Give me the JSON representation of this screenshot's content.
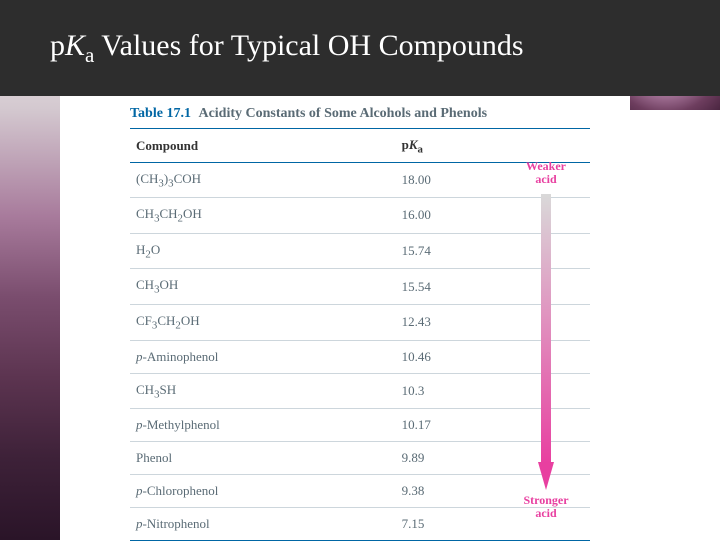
{
  "title": {
    "prefix": "p",
    "k": "K",
    "sub": "a",
    "rest": " Values for Typical OH Compounds"
  },
  "table": {
    "number": "Table 17.1",
    "caption": "Acidity Constants of Some Alcohols and Phenols",
    "headers": {
      "compound": "Compound",
      "pka": "pKa"
    },
    "rows": [
      {
        "compound_html": "(CH<sub>3</sub>)<sub>3</sub>COH",
        "pka": "18.00"
      },
      {
        "compound_html": "CH<sub>3</sub>CH<sub>2</sub>OH",
        "pka": "16.00"
      },
      {
        "compound_html": "H<sub>2</sub>O",
        "pka": "15.74"
      },
      {
        "compound_html": "CH<sub>3</sub>OH",
        "pka": "15.54"
      },
      {
        "compound_html": "CF<sub>3</sub>CH<sub>2</sub>OH",
        "pka": "12.43"
      },
      {
        "compound_html": "<i>p</i>-Aminophenol",
        "pka": "10.46"
      },
      {
        "compound_html": "CH<sub>3</sub>SH",
        "pka": "10.3"
      },
      {
        "compound_html": "<i>p</i>-Methylphenol",
        "pka": "10.17"
      },
      {
        "compound_html": "Phenol",
        "pka": "9.89"
      },
      {
        "compound_html": "<i>p</i>-Chlorophenol",
        "pka": "9.38"
      },
      {
        "compound_html": "<i>p</i>-Nitrophenol",
        "pka": "7.15"
      }
    ]
  },
  "arrow": {
    "top_label": "Weaker acid",
    "bottom_label": "Stronger acid",
    "gradient_top": "#d9d9d9",
    "gradient_bottom": "#e83fa0"
  },
  "colors": {
    "title_bg": "#2d2d2d",
    "title_fg": "#ffffff",
    "accent_blue": "#0066a4",
    "body_gray": "#5a6b75",
    "pink": "#e83fa0"
  }
}
